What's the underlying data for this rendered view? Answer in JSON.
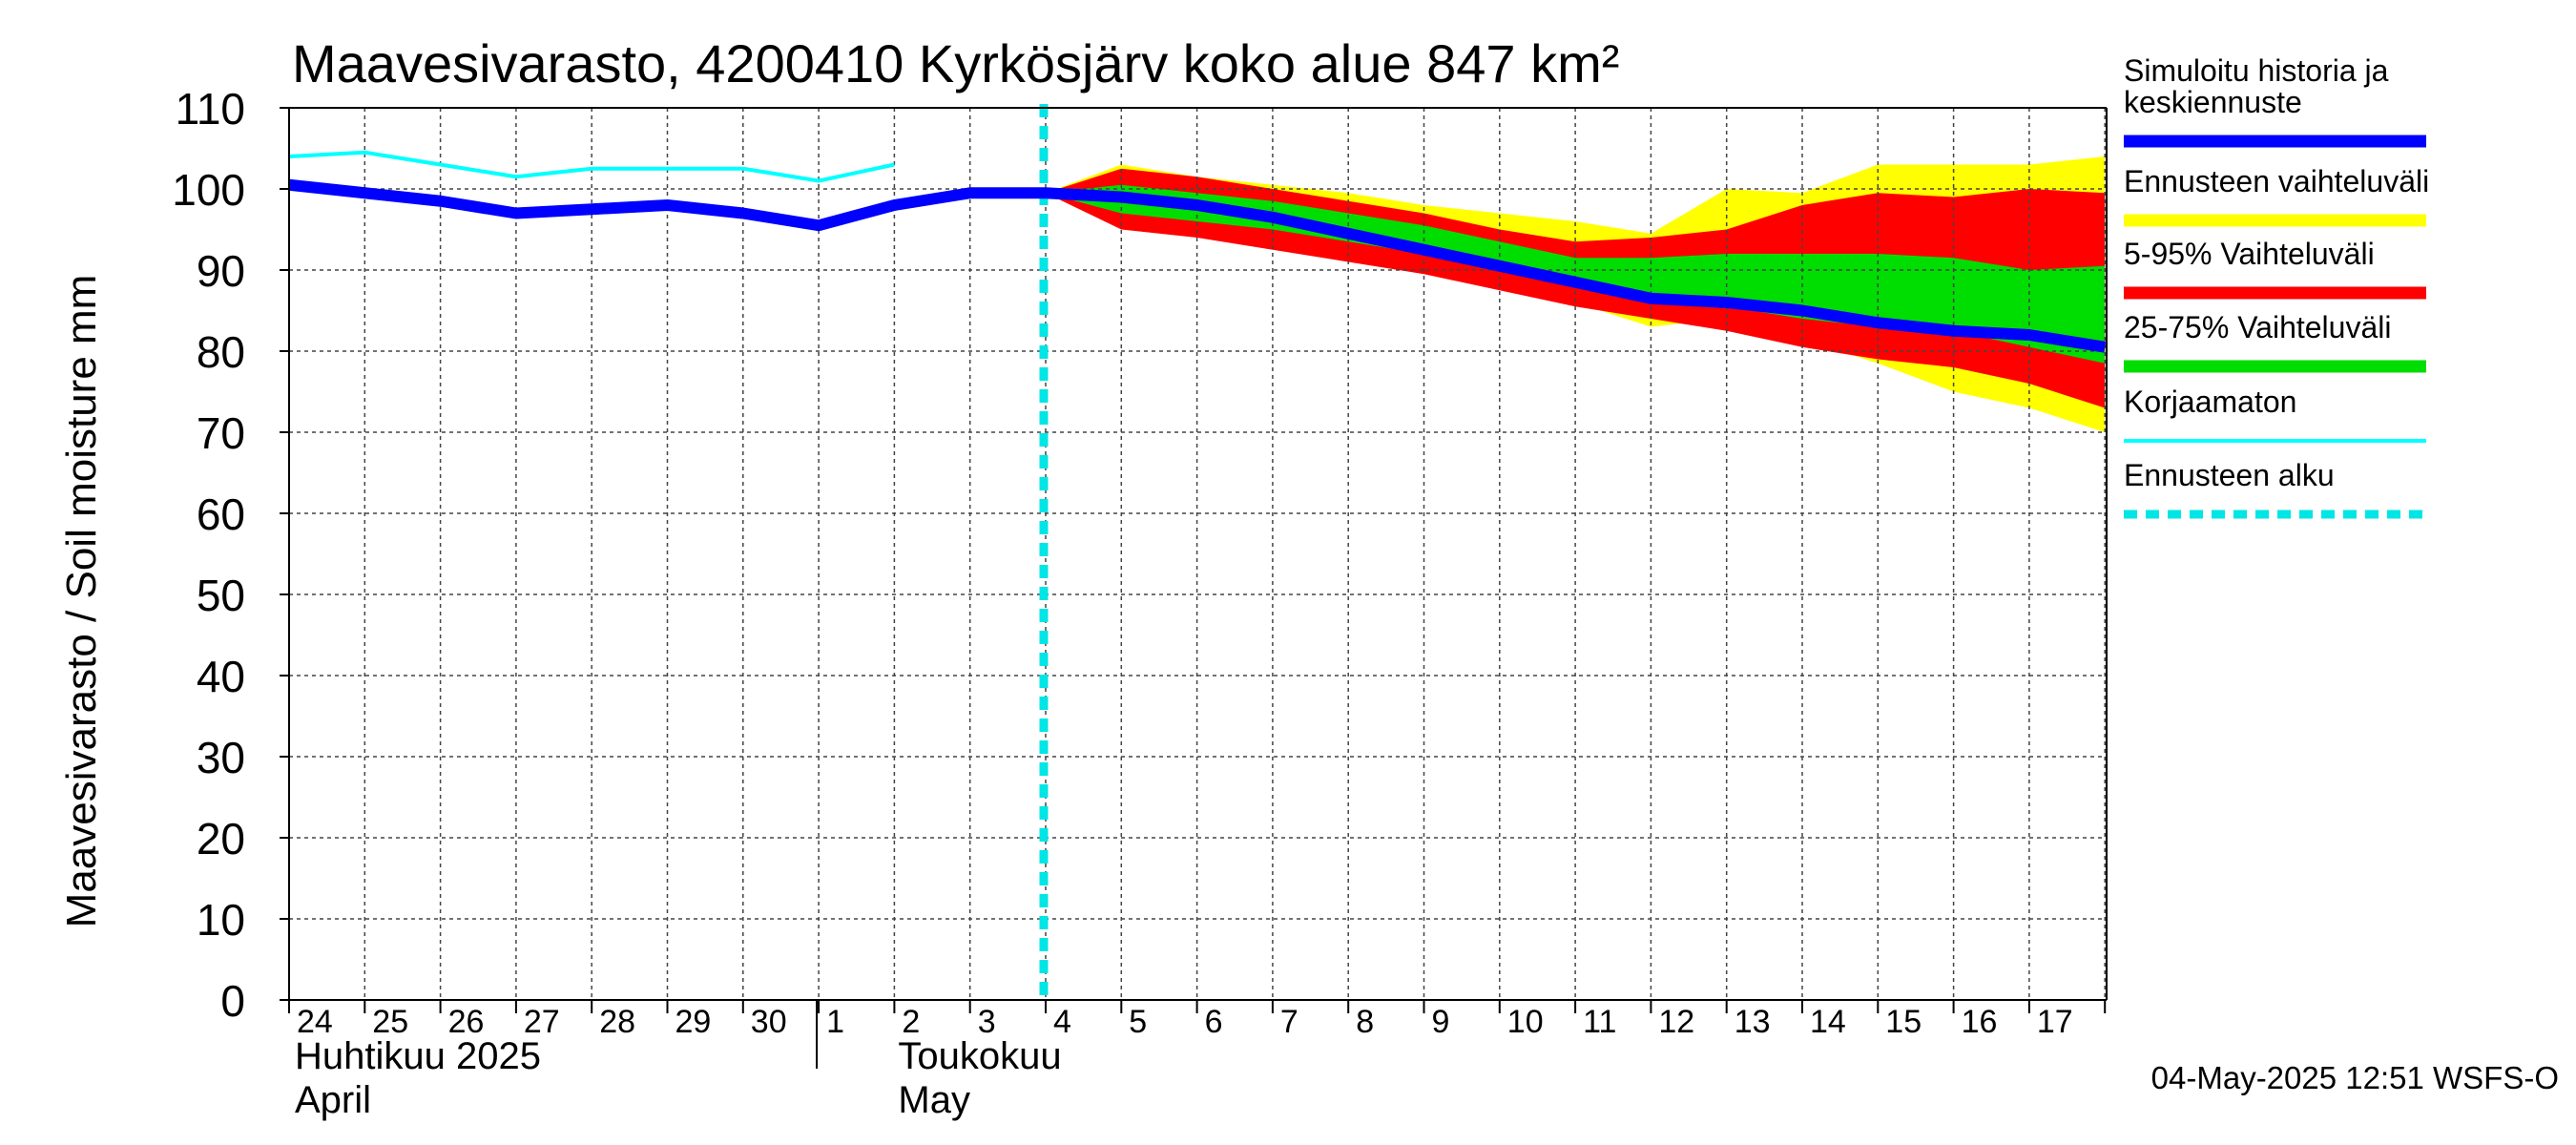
{
  "chart_data": {
    "type": "area",
    "title": "Maavesivarasto, 4200410 Kyrkösjärv koko alue 847 km²",
    "ylabel": "Maavesivarasto / Soil moisture   mm",
    "ylim": [
      0,
      110
    ],
    "yticks": [
      0,
      10,
      20,
      30,
      40,
      50,
      60,
      70,
      80,
      90,
      100,
      110
    ],
    "grid": true,
    "x_days": [
      "24",
      "25",
      "26",
      "27",
      "28",
      "29",
      "30",
      "1",
      "2",
      "3",
      "4",
      "5",
      "6",
      "7",
      "8",
      "9",
      "10",
      "11",
      "12",
      "13",
      "14",
      "15",
      "16",
      "17"
    ],
    "month_labels": [
      {
        "fi": "Huhtikuu  2025",
        "en": "April"
      },
      {
        "fi": "Toukokuu",
        "en": "May"
      }
    ],
    "forecast_start_day_index": 10,
    "series": [
      {
        "name": "Ennusteen vaihteluväli",
        "kind": "band",
        "color": "#ffff00",
        "x": [
          10,
          11,
          12,
          13,
          14,
          15,
          16,
          17,
          18,
          19,
          20,
          21,
          22,
          23,
          24
        ],
        "upper": [
          99.5,
          103,
          101.5,
          100.5,
          99.5,
          98,
          97,
          96,
          94.5,
          100,
          99.5,
          103,
          103,
          103,
          104
        ],
        "lower": [
          99.5,
          96,
          95,
          93.5,
          92.5,
          91,
          88.5,
          86,
          83,
          84,
          81.5,
          78.5,
          75,
          73,
          70
        ]
      },
      {
        "name": "5-95% Vaihteluväli",
        "kind": "band",
        "color": "#ff0000",
        "x": [
          10,
          11,
          12,
          13,
          14,
          15,
          16,
          17,
          18,
          19,
          20,
          21,
          22,
          23,
          24
        ],
        "upper": [
          99.5,
          102.5,
          101.5,
          100,
          98.5,
          97,
          95,
          93.5,
          94,
          95,
          98,
          99.5,
          99,
          100,
          99.5
        ],
        "lower": [
          99.5,
          95,
          94,
          92.5,
          91,
          89.5,
          87.5,
          85.5,
          84,
          82.5,
          80.5,
          79,
          78,
          76,
          73
        ]
      },
      {
        "name": "25-75% Vaihteluväli",
        "kind": "band",
        "color": "#00dd00",
        "x": [
          10,
          11,
          12,
          13,
          14,
          15,
          16,
          17,
          18,
          19,
          20,
          21,
          22,
          23,
          24
        ],
        "upper": [
          99.5,
          100.5,
          99.5,
          98.5,
          97,
          95.5,
          93.5,
          91.5,
          91.5,
          92,
          92,
          92,
          91.5,
          90,
          90.5
        ],
        "lower": [
          99.5,
          97,
          96,
          95,
          93.5,
          92,
          90,
          88.5,
          86.5,
          85.5,
          84,
          83,
          82.5,
          80.5,
          78.5
        ]
      },
      {
        "name": "Korjaamaton",
        "kind": "line",
        "color": "#00ffff",
        "x": [
          0,
          1,
          2,
          3,
          4,
          5,
          6,
          7,
          8
        ],
        "values": [
          104,
          104.5,
          103,
          101.5,
          102.5,
          102.5,
          102.5,
          101,
          103
        ]
      },
      {
        "name": "Simuloitu historia ja keskiennuste",
        "kind": "line",
        "color": "#0000ff",
        "x": [
          0,
          1,
          2,
          3,
          4,
          5,
          6,
          7,
          8,
          9,
          10,
          11,
          12,
          13,
          14,
          15,
          16,
          17,
          18,
          19,
          20,
          21,
          22,
          23,
          24
        ],
        "values": [
          100.5,
          99.5,
          98.5,
          97,
          97.5,
          98,
          97,
          95.5,
          98,
          99.5,
          99.5,
          99,
          98,
          96.5,
          94.5,
          92.5,
          90.5,
          88.5,
          86.5,
          86,
          85,
          83.5,
          82.5,
          82,
          80.5
        ]
      }
    ],
    "legend": [
      {
        "label_lines": [
          "Simuloitu historia ja",
          "keskiennuste"
        ],
        "color": "#0000ff",
        "style": "solid"
      },
      {
        "label_lines": [
          "Ennusteen vaihteluväli"
        ],
        "color": "#ffff00",
        "style": "solid"
      },
      {
        "label_lines": [
          "5-95% Vaihteluväli"
        ],
        "color": "#ff0000",
        "style": "solid"
      },
      {
        "label_lines": [
          "25-75% Vaihteluväli"
        ],
        "color": "#00dd00",
        "style": "solid"
      },
      {
        "label_lines": [
          "Korjaamaton"
        ],
        "color": "#00ffff",
        "style": "thin"
      },
      {
        "label_lines": [
          "Ennusteen alku"
        ],
        "color": "#00e5e5",
        "style": "dashed"
      }
    ],
    "footer": "04-May-2025 12:51 WSFS-O"
  }
}
